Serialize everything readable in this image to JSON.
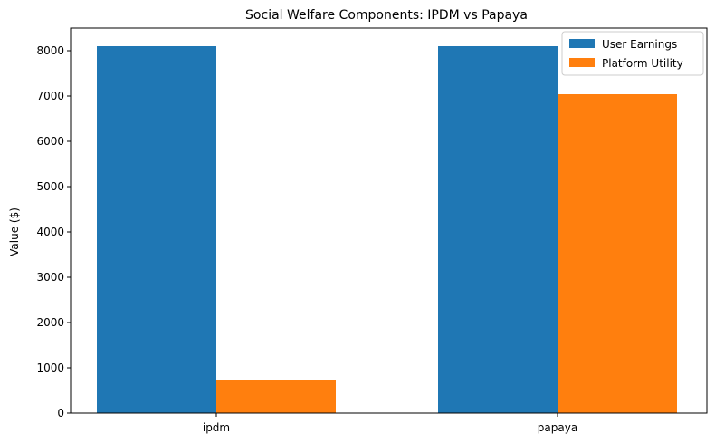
{
  "chart_data": {
    "type": "bar",
    "title": "Social Welfare Components: IPDM vs Papaya",
    "xlabel": "",
    "ylabel": "Value ($)",
    "categories": [
      "ipdm",
      "papaya"
    ],
    "series": [
      {
        "name": "User Earnings",
        "values": [
          8100,
          8100
        ],
        "color": "#1f77b4"
      },
      {
        "name": "Platform Utility",
        "values": [
          740,
          7040
        ],
        "color": "#ff7f0e"
      }
    ],
    "ylim": [
      0,
      8500
    ],
    "yticks": [
      0,
      1000,
      2000,
      3000,
      4000,
      5000,
      6000,
      7000,
      8000
    ],
    "grid": false,
    "legend_position": "top-right"
  }
}
